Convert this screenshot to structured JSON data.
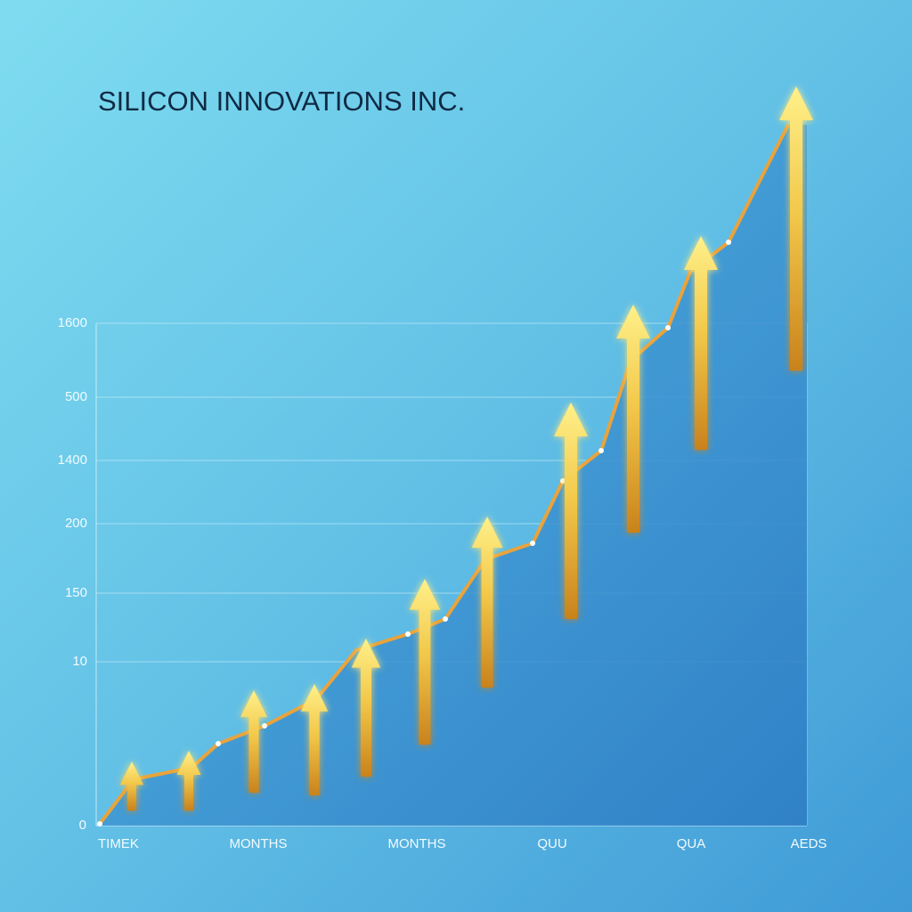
{
  "title": "SILICON INNOVATIONS INC.",
  "y_axis_labels": [
    "1600",
    "500",
    "1400",
    "200",
    "150",
    "10",
    "0"
  ],
  "x_axis_labels": [
    "TIMEK",
    "MONTHS",
    "MONTHS",
    "QUU",
    "QUA",
    "AEDS"
  ]
}
